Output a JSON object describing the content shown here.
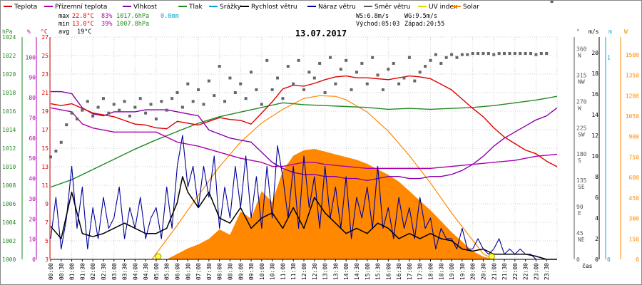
{
  "chart_data": {
    "type": "line",
    "title": "13.07.2017",
    "legend": [
      {
        "key": "temp",
        "label": "Teplota",
        "color": "#dd0000"
      },
      {
        "key": "feels",
        "label": "Přízemní teplota",
        "color": "#aa00aa"
      },
      {
        "key": "hum",
        "label": "Vlhkost",
        "color": "#8800aa"
      },
      {
        "key": "press",
        "label": "Tlak",
        "color": "#228822"
      },
      {
        "key": "rain",
        "label": "Srážky",
        "color": "#00aacc"
      },
      {
        "key": "wind",
        "label": "Rychlost větru",
        "color": "#000000"
      },
      {
        "key": "gust",
        "label": "Náraz větru",
        "color": "#000099"
      },
      {
        "key": "dir",
        "label": "Směr větru",
        "color": "#555555"
      },
      {
        "key": "uv",
        "label": "UV index",
        "color": "#dddd00"
      },
      {
        "key": "solar",
        "label": "Solar",
        "color": "#ff8800"
      }
    ],
    "stats": {
      "max_label": "max",
      "max_temp": "22.8°C",
      "max_hum": "83%",
      "max_press": "1017.6hPa",
      "rain_total": "0.0mm",
      "min_label": "min",
      "min_temp": "13.0°C",
      "min_hum": "39%",
      "min_press": "1007.8hPa",
      "avg_label": "avg",
      "avg_temp": "19°C",
      "ws": "WS:6.8m/s",
      "wg": "WG:9.5m/s",
      "sunrise": "Východ:05:03",
      "sunset": "Západ:20:55"
    },
    "x_ticks": [
      "00:00",
      "00:30",
      "01:00",
      "01:30",
      "02:00",
      "02:30",
      "03:00",
      "03:30",
      "04:00",
      "04:30",
      "05:00",
      "05:30",
      "06:00",
      "06:30",
      "07:00",
      "07:30",
      "08:00",
      "08:30",
      "09:00",
      "09:30",
      "10:00",
      "10:30",
      "11:00",
      "11:30",
      "12:00",
      "12:30",
      "13:00",
      "13:30",
      "14:00",
      "14:30",
      "15:00",
      "15:30",
      "16:00",
      "16:30",
      "17:00",
      "17:30",
      "18:00",
      "18:30",
      "19:00",
      "19:30",
      "20:00",
      "20:30",
      "21:00",
      "21:30",
      "22:00",
      "22:30",
      "23:00",
      "23:30"
    ],
    "x_label": "čas",
    "axes": {
      "press": {
        "unit": "hPa",
        "ticks": [
          1000,
          1002,
          1004,
          1006,
          1008,
          1010,
          1012,
          1014,
          1016,
          1018,
          1020,
          1022,
          1024
        ],
        "color": "#228822"
      },
      "hum": {
        "unit": "%",
        "ticks": [
          0,
          10,
          20,
          30,
          40,
          50,
          60,
          70,
          80,
          90,
          100
        ],
        "color": "#aa00aa"
      },
      "temp": {
        "unit": "°C",
        "ticks": [
          3,
          5,
          7,
          9,
          11,
          13,
          15,
          17,
          19,
          21,
          23,
          25,
          27
        ],
        "color": "#dd0000"
      },
      "dir": {
        "unit": "°",
        "ticks": [
          "0",
          "45 NE",
          "90 E",
          "135 SE",
          "180 S",
          "225 SW",
          "270 W",
          "315 NW",
          "360 N"
        ],
        "color": "#555555"
      },
      "wind": {
        "unit": "m/s",
        "ticks": [
          0,
          2,
          4,
          6,
          8,
          10,
          12,
          14,
          16,
          18,
          20
        ],
        "color": "#000000"
      },
      "rain": {
        "unit": "m",
        "ticks": [
          0,
          1
        ],
        "color": "#00aacc"
      },
      "solar": {
        "unit": "W",
        "ticks": [
          0,
          150,
          300,
          450,
          600,
          750,
          900,
          1050,
          1200,
          1350,
          1500
        ],
        "color": "#ff8800"
      }
    },
    "series": [
      {
        "key": "temp",
        "name": "Teplota",
        "t": [
          0,
          0.5,
          1,
          1.5,
          2,
          2.5,
          3,
          3.5,
          4,
          4.5,
          5,
          5.5,
          6,
          6.5,
          7,
          7.5,
          8,
          8.5,
          9,
          9.5,
          10,
          10.5,
          11,
          11.5,
          12,
          12.5,
          13,
          13.5,
          14,
          14.5,
          15,
          15.5,
          16,
          16.5,
          17,
          17.5,
          18,
          18.5,
          19,
          19.5,
          20,
          20.5,
          21,
          21.5,
          22,
          22.5,
          23,
          23.5,
          24
        ],
        "v": [
          19.8,
          19.6,
          19.8,
          19.3,
          18.8,
          18.6,
          18.4,
          18.0,
          17.6,
          17.5,
          17.2,
          17.1,
          17.9,
          17.7,
          17.5,
          17.9,
          18.3,
          18.1,
          18.0,
          17.6,
          18.8,
          20.0,
          21.4,
          21.8,
          21.7,
          22.0,
          22.4,
          22.7,
          22.8,
          22.6,
          22.6,
          22.5,
          22.4,
          22.6,
          22.8,
          22.7,
          22.5,
          21.9,
          21.3,
          20.3,
          19.3,
          18.4,
          17.2,
          16.2,
          15.5,
          14.8,
          14.4,
          13.6,
          13.0
        ]
      },
      {
        "key": "feels",
        "name": "Přízemní teplota",
        "t": [
          0,
          1,
          1.5,
          2,
          3,
          4,
          5,
          6,
          7,
          8,
          9,
          10,
          10.5,
          11,
          11.5,
          12,
          12.5,
          13,
          14,
          15,
          16,
          17,
          18,
          19,
          20,
          21,
          22,
          23,
          24
        ],
        "v": [
          75,
          73,
          67,
          65,
          63,
          63,
          63,
          58,
          56,
          53,
          50,
          48,
          46,
          46,
          47,
          48,
          48,
          47,
          46,
          45,
          45,
          45,
          45,
          46,
          47,
          48,
          49,
          51,
          52
        ]
      },
      {
        "key": "hum",
        "name": "Vlhkost",
        "t": [
          0,
          0.5,
          1,
          1.5,
          2,
          2.5,
          3,
          3.5,
          4,
          4.5,
          5,
          5.5,
          6,
          6.5,
          7,
          7.5,
          8,
          8.5,
          9,
          9.5,
          10,
          10.5,
          11,
          11.5,
          12,
          12.5,
          13,
          13.5,
          14,
          14.5,
          15,
          15.5,
          16,
          16.5,
          17,
          17.5,
          18,
          18.5,
          19,
          19.5,
          20,
          20.5,
          21,
          21.5,
          22,
          22.5,
          23,
          23.5,
          24
        ],
        "v": [
          83,
          83,
          82,
          75,
          72,
          71,
          73,
          73,
          73,
          74,
          74,
          74,
          73,
          72,
          71,
          64,
          62,
          60,
          59,
          58,
          53,
          48,
          45,
          43,
          42,
          42,
          41,
          41,
          40,
          40,
          39,
          40,
          41,
          41,
          40,
          40,
          41,
          41,
          42,
          44,
          47,
          51,
          56,
          60,
          63,
          66,
          69,
          71,
          75
        ]
      },
      {
        "key": "press",
        "name": "Tlak",
        "t": [
          0,
          1,
          2,
          3,
          4,
          5,
          6,
          7,
          8,
          9,
          10,
          11,
          11.5,
          12,
          13,
          14,
          15,
          16,
          17,
          18,
          19,
          20,
          21,
          22,
          23,
          24
        ],
        "v": [
          1007.8,
          1008.6,
          1009.7,
          1010.8,
          1011.9,
          1012.9,
          1013.8,
          1014.7,
          1015.4,
          1015.9,
          1016.4,
          1016.9,
          1016.8,
          1016.7,
          1016.6,
          1016.5,
          1016.4,
          1016.2,
          1016.3,
          1016.2,
          1016.3,
          1016.4,
          1016.6,
          1016.9,
          1017.2,
          1017.6
        ]
      },
      {
        "key": "wind",
        "name": "Rychlost větru",
        "t": [
          0,
          0.5,
          1,
          1.5,
          2,
          2.5,
          3,
          3.5,
          4,
          4.5,
          5,
          5.5,
          6,
          6.25,
          6.5,
          7,
          7.5,
          8,
          8.5,
          9,
          9.5,
          10,
          10.5,
          11,
          11.5,
          12,
          12.5,
          13,
          13.5,
          14,
          14.5,
          15,
          15.5,
          16,
          16.5,
          17,
          17.5,
          18,
          18.5,
          19,
          19.5,
          20,
          20.5,
          21,
          21.5,
          22,
          22.5,
          23,
          23.5,
          24
        ],
        "v": [
          3.2,
          2.0,
          6.5,
          2.5,
          2.2,
          2.5,
          3.0,
          3.5,
          3.0,
          2.5,
          2.5,
          3.0,
          5.5,
          8.0,
          6.5,
          5.0,
          6.5,
          4.0,
          3.5,
          5.0,
          3.0,
          4.0,
          4.5,
          3.0,
          5.0,
          3.0,
          6.0,
          4.5,
          3.5,
          2.5,
          3.0,
          2.5,
          3.5,
          3.0,
          2.0,
          2.5,
          2.0,
          2.5,
          2.0,
          1.8,
          1.0,
          0.8,
          1.0,
          0.5,
          0.5,
          0.5,
          0.5,
          0.3,
          0.0,
          0.0
        ]
      },
      {
        "key": "gust",
        "name": "Náraz větru",
        "t": [
          0,
          0.25,
          0.5,
          0.75,
          1,
          1.25,
          1.5,
          1.75,
          2,
          2.25,
          2.5,
          2.75,
          3,
          3.25,
          3.5,
          3.75,
          4,
          4.25,
          4.5,
          4.75,
          5,
          5.25,
          5.5,
          5.75,
          6,
          6.25,
          6.5,
          6.75,
          7,
          7.25,
          7.5,
          7.75,
          8,
          8.25,
          8.5,
          8.75,
          9,
          9.25,
          9.5,
          9.75,
          10,
          10.25,
          10.5,
          10.75,
          11,
          11.25,
          11.5,
          11.75,
          12,
          12.25,
          12.5,
          12.75,
          13,
          13.25,
          13.5,
          13.75,
          14,
          14.25,
          14.5,
          14.75,
          15,
          15.25,
          15.5,
          15.75,
          16,
          16.25,
          16.5,
          16.75,
          17,
          17.25,
          17.5,
          17.75,
          18,
          18.25,
          18.5,
          18.75,
          19,
          19.25,
          19.5,
          19.75,
          20,
          20.25,
          20.5,
          20.75,
          21,
          21.25,
          21.5,
          21.75,
          22,
          22.25,
          22.5,
          22.75,
          23,
          23.25,
          23.5,
          23.75,
          24
        ],
        "v": [
          2,
          6,
          1,
          4,
          9,
          3,
          7,
          1,
          5,
          2,
          6,
          3,
          4,
          7,
          2,
          5,
          3,
          6,
          2,
          4,
          5,
          2,
          7,
          3,
          9,
          12,
          7,
          9,
          5,
          9,
          6,
          10,
          3,
          7,
          4,
          9,
          5,
          10,
          4,
          8,
          3,
          9,
          4,
          11,
          8,
          4,
          9,
          3,
          10,
          5,
          8,
          3,
          9,
          4,
          7,
          3,
          8,
          2,
          6,
          4,
          7,
          3,
          9,
          3,
          5,
          2,
          6,
          3,
          5,
          2,
          6,
          3,
          4,
          1,
          3,
          2,
          2,
          1,
          3,
          1,
          1,
          2,
          1,
          0.5,
          1,
          2,
          0.5,
          1,
          0.5,
          1,
          0.5,
          0.5,
          0,
          0,
          0,
          0,
          0
        ]
      },
      {
        "key": "dir",
        "name": "Směr větru",
        "t": [
          0,
          0.25,
          0.5,
          0.75,
          1,
          1.25,
          1.5,
          1.75,
          2,
          2.25,
          2.5,
          2.75,
          3,
          3.25,
          3.5,
          3.75,
          4,
          4.25,
          4.5,
          4.75,
          5,
          5.25,
          5.5,
          5.75,
          6,
          6.25,
          6.5,
          6.75,
          7,
          7.25,
          7.5,
          7.75,
          8,
          8.25,
          8.5,
          8.75,
          9,
          9.25,
          9.5,
          9.75,
          10,
          10.25,
          10.5,
          10.75,
          11,
          11.25,
          11.5,
          11.75,
          12,
          12.25,
          12.5,
          12.75,
          13,
          13.25,
          13.5,
          13.75,
          14,
          14.25,
          14.5,
          14.75,
          15,
          15.25,
          15.5,
          15.75,
          16,
          16.25,
          16.5,
          16.75,
          17,
          17.25,
          17.5,
          17.75,
          18,
          18.25,
          18.5,
          18.75,
          19,
          19.25,
          19.5,
          19.75,
          20,
          20.25,
          20.5,
          20.75,
          21,
          21.25,
          21.5,
          21.75,
          22,
          22.25,
          22.5,
          22.75,
          23,
          23.25,
          23.5,
          23.75
        ],
        "v": [
          175,
          185,
          200,
          230,
          250,
          240,
          255,
          270,
          245,
          260,
          275,
          250,
          265,
          255,
          270,
          245,
          260,
          275,
          250,
          265,
          240,
          270,
          255,
          275,
          285,
          260,
          300,
          270,
          290,
          265,
          305,
          280,
          330,
          270,
          310,
          285,
          300,
          275,
          320,
          290,
          265,
          340,
          290,
          310,
          275,
          330,
          300,
          340,
          290,
          320,
          310,
          335,
          285,
          345,
          300,
          325,
          340,
          290,
          320,
          335,
          300,
          345,
          315,
          290,
          325,
          335,
          300,
          310,
          345,
          305,
          320,
          330,
          340,
          350,
          335,
          345,
          350,
          345,
          350,
          350,
          352,
          352,
          352,
          352,
          350,
          352,
          352,
          352,
          352,
          352,
          352,
          352,
          350,
          352,
          352
        ]
      },
      {
        "key": "solar",
        "name": "Solar",
        "t": [
          0,
          4.5,
          5,
          5.5,
          6,
          6.5,
          7,
          7.5,
          8,
          8.5,
          9,
          9.5,
          10,
          10.5,
          11,
          11.5,
          12,
          12.5,
          13,
          13.5,
          14,
          14.5,
          15,
          15.5,
          16,
          16.5,
          17,
          17.5,
          18,
          18.5,
          19,
          19.5,
          20,
          20.5,
          21,
          24
        ],
        "v": [
          0,
          0,
          0,
          0,
          40,
          80,
          110,
          150,
          220,
          180,
          350,
          300,
          500,
          420,
          650,
          760,
          800,
          810,
          790,
          770,
          750,
          730,
          700,
          660,
          620,
          570,
          500,
          430,
          360,
          280,
          200,
          130,
          60,
          20,
          0,
          0
        ]
      },
      {
        "key": "solar_max",
        "name": "Solar max",
        "t": [
          4.8,
          6,
          7,
          8,
          9,
          10,
          11,
          12,
          12.75,
          13.5,
          14,
          15,
          16,
          17,
          18,
          19,
          20,
          20.5,
          21
        ],
        "v": [
          0,
          250,
          470,
          680,
          860,
          1000,
          1100,
          1180,
          1200,
          1195,
          1170,
          1080,
          940,
          760,
          560,
          340,
          140,
          40,
          0
        ]
      },
      {
        "key": "uv",
        "name": "UV index",
        "t": [
          5.1,
          20.9
        ],
        "v": [
          0,
          0
        ]
      }
    ]
  }
}
